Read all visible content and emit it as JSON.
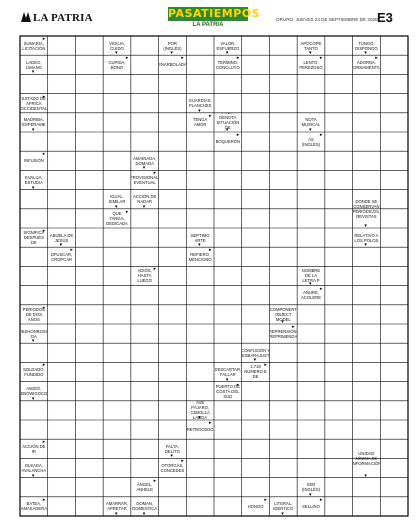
{
  "header": {
    "newspaper": "LA PATRIA",
    "section_title": "PASATIEMPOS",
    "section_sub": "LA PATRIA",
    "date": "ORURO, JUEVES 24 DE SEPTIEMBRE DE 2020",
    "page_code": "E3"
  },
  "colors": {
    "grid_line": "#000000",
    "clue_fill": "#ffffff",
    "logo_green": "#2f8a2f",
    "logo_yellow": "#ffd400"
  },
  "grid": {
    "rows": 25,
    "cols": 14
  },
  "clues": [
    {
      "text": "SUMARIA, LICITACIÓN"
    },
    {
      "text": "LADEO, LIMANO"
    },
    {
      "text": "VIGILIA, CUIDO"
    },
    {
      "text": "CUPIDA, BONO"
    },
    {
      "text": "POR (INGLÉS)"
    },
    {
      "text": "ENARBOLADA"
    },
    {
      "text": "VALOR, ESFUERZO"
    },
    {
      "text": "TERMINO, CONCLUYO"
    },
    {
      "text": "APOCOPE TANTO"
    },
    {
      "text": "LENTO, PEREZOSO"
    },
    {
      "text": "TUNGO, DISPONGO"
    },
    {
      "text": "ADORNA, ORNAMENTA"
    },
    {
      "text": "ESTADO DE ÁFRICA OCCIDENTAL"
    },
    {
      "text": "MADRIBA, ESPERAME"
    },
    {
      "text": "GUARDIAS, PLANCHES"
    },
    {
      "text": "TENGA AMOR"
    },
    {
      "text": "PREP. DENOTA SITUACIÓN DE TRÁNSITO"
    },
    {
      "text": "BOQUERÓN"
    },
    {
      "text": "NOTA MUSICAL"
    },
    {
      "text": "AS (INGLÉS)"
    },
    {
      "text": "INFUSIÓN"
    },
    {
      "text": "EVALUA, ESTUDIA"
    },
    {
      "text": "AMAINADA, DOMADA"
    },
    {
      "text": "PROVISIONAL, EVENTUAL"
    },
    {
      "text": "ACCIÓN DE NADAR"
    },
    {
      "text": "IGUAL, SIMILAR"
    },
    {
      "text": "QUE TANGA, DEDICADA"
    },
    {
      "text": "DONDE SE CONSERVAN PERIÓDICOS, REVISTAS"
    },
    {
      "text": "SIGNIFICA DESPUÉS DE"
    },
    {
      "text": "ABUELA DE JESÚS"
    },
    {
      "text": "DFUSCAR, CROPCAR"
    },
    {
      "text": "SEPTIMO ARTE"
    },
    {
      "text": "REFIERO, MENCIONO"
    },
    {
      "text": "RELATIVO A LOS POLOS"
    },
    {
      "text": "ADIÓS, HASTA LUEGO"
    },
    {
      "text": "NOMBRE DE LA LETRA P"
    },
    {
      "text": "AÑURE, ACOLERE"
    },
    {
      "text": "PERIODOS DE DOS AÑOS"
    },
    {
      "text": "DESHONROSO DA"
    },
    {
      "text": "COMPONENT OBJECT MODEL"
    },
    {
      "text": "REPRENSIÓN, REPRIMENDA"
    },
    {
      "text": "CONFUSIÓN Y DESBARAJUSTE"
    },
    {
      "text": "2.718 NÚMERO E DE"
    },
    {
      "text": "SOLDADO, FUNDIDO"
    },
    {
      "text": "AMIGO, EBOWIGOCO"
    },
    {
      "text": "DESCARTAR, FALLAR"
    },
    {
      "text": "PUERTO DE COSTA DEL SUD"
    },
    {
      "text": "AVE PÁJARO, CEBOLLA LARGA"
    },
    {
      "text": "RETROCEDO"
    },
    {
      "text": "ACCIÓN DE IR"
    },
    {
      "text": "OLEADA, AVALANCHA"
    },
    {
      "text": "FALTA, DELITO"
    },
    {
      "text": "OTORGAS, CONCEDES"
    },
    {
      "text": "UNIDAD MÍNIMA DE INFORMACIÓN"
    },
    {
      "text": "ÁNGEL, ANHELE"
    },
    {
      "text": "DOMAN, DOMESTICA"
    },
    {
      "text": "SER (INGLÉS)"
    },
    {
      "text": "SELLINO"
    },
    {
      "text": "BATEA, AMASADERA"
    },
    {
      "text": "AMARRAR, APRETAR"
    },
    {
      "text": "LITERAL, IDENTICO"
    },
    {
      "text": "HONGO"
    }
  ]
}
